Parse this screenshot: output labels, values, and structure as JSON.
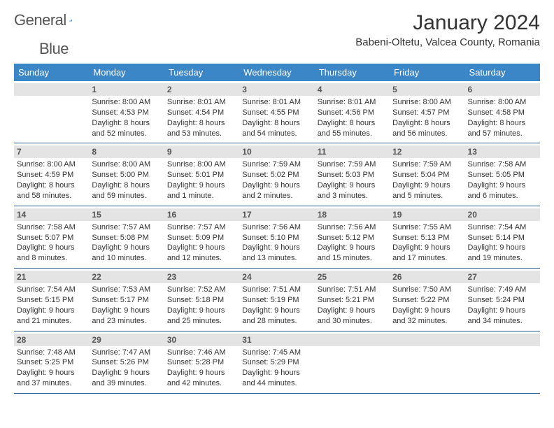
{
  "brand": {
    "word1": "General",
    "word2": "Blue"
  },
  "title": "January 2024",
  "location": "Babeni-Oltetu, Valcea County, Romania",
  "weekdays": [
    "Sunday",
    "Monday",
    "Tuesday",
    "Wednesday",
    "Thursday",
    "Friday",
    "Saturday"
  ],
  "colors": {
    "header_bg": "#3b86c6",
    "header_text": "#ffffff",
    "row_border": "#2a5d8a",
    "dayband_bg": "#e4e4e4",
    "dayband_text": "#555555",
    "body_text": "#333333",
    "logo_text": "#555555",
    "logo_tri1": "#2a5d8a",
    "logo_tri2": "#5ea2dd"
  },
  "calendar_fontsize": 11,
  "weeks": [
    [
      {
        "num": "",
        "sunrise": "",
        "sunset": "",
        "daylight": ""
      },
      {
        "num": "1",
        "sunrise": "Sunrise: 8:00 AM",
        "sunset": "Sunset: 4:53 PM",
        "daylight": "Daylight: 8 hours and 52 minutes."
      },
      {
        "num": "2",
        "sunrise": "Sunrise: 8:01 AM",
        "sunset": "Sunset: 4:54 PM",
        "daylight": "Daylight: 8 hours and 53 minutes."
      },
      {
        "num": "3",
        "sunrise": "Sunrise: 8:01 AM",
        "sunset": "Sunset: 4:55 PM",
        "daylight": "Daylight: 8 hours and 54 minutes."
      },
      {
        "num": "4",
        "sunrise": "Sunrise: 8:01 AM",
        "sunset": "Sunset: 4:56 PM",
        "daylight": "Daylight: 8 hours and 55 minutes."
      },
      {
        "num": "5",
        "sunrise": "Sunrise: 8:00 AM",
        "sunset": "Sunset: 4:57 PM",
        "daylight": "Daylight: 8 hours and 56 minutes."
      },
      {
        "num": "6",
        "sunrise": "Sunrise: 8:00 AM",
        "sunset": "Sunset: 4:58 PM",
        "daylight": "Daylight: 8 hours and 57 minutes."
      }
    ],
    [
      {
        "num": "7",
        "sunrise": "Sunrise: 8:00 AM",
        "sunset": "Sunset: 4:59 PM",
        "daylight": "Daylight: 8 hours and 58 minutes."
      },
      {
        "num": "8",
        "sunrise": "Sunrise: 8:00 AM",
        "sunset": "Sunset: 5:00 PM",
        "daylight": "Daylight: 8 hours and 59 minutes."
      },
      {
        "num": "9",
        "sunrise": "Sunrise: 8:00 AM",
        "sunset": "Sunset: 5:01 PM",
        "daylight": "Daylight: 9 hours and 1 minute."
      },
      {
        "num": "10",
        "sunrise": "Sunrise: 7:59 AM",
        "sunset": "Sunset: 5:02 PM",
        "daylight": "Daylight: 9 hours and 2 minutes."
      },
      {
        "num": "11",
        "sunrise": "Sunrise: 7:59 AM",
        "sunset": "Sunset: 5:03 PM",
        "daylight": "Daylight: 9 hours and 3 minutes."
      },
      {
        "num": "12",
        "sunrise": "Sunrise: 7:59 AM",
        "sunset": "Sunset: 5:04 PM",
        "daylight": "Daylight: 9 hours and 5 minutes."
      },
      {
        "num": "13",
        "sunrise": "Sunrise: 7:58 AM",
        "sunset": "Sunset: 5:05 PM",
        "daylight": "Daylight: 9 hours and 6 minutes."
      }
    ],
    [
      {
        "num": "14",
        "sunrise": "Sunrise: 7:58 AM",
        "sunset": "Sunset: 5:07 PM",
        "daylight": "Daylight: 9 hours and 8 minutes."
      },
      {
        "num": "15",
        "sunrise": "Sunrise: 7:57 AM",
        "sunset": "Sunset: 5:08 PM",
        "daylight": "Daylight: 9 hours and 10 minutes."
      },
      {
        "num": "16",
        "sunrise": "Sunrise: 7:57 AM",
        "sunset": "Sunset: 5:09 PM",
        "daylight": "Daylight: 9 hours and 12 minutes."
      },
      {
        "num": "17",
        "sunrise": "Sunrise: 7:56 AM",
        "sunset": "Sunset: 5:10 PM",
        "daylight": "Daylight: 9 hours and 13 minutes."
      },
      {
        "num": "18",
        "sunrise": "Sunrise: 7:56 AM",
        "sunset": "Sunset: 5:12 PM",
        "daylight": "Daylight: 9 hours and 15 minutes."
      },
      {
        "num": "19",
        "sunrise": "Sunrise: 7:55 AM",
        "sunset": "Sunset: 5:13 PM",
        "daylight": "Daylight: 9 hours and 17 minutes."
      },
      {
        "num": "20",
        "sunrise": "Sunrise: 7:54 AM",
        "sunset": "Sunset: 5:14 PM",
        "daylight": "Daylight: 9 hours and 19 minutes."
      }
    ],
    [
      {
        "num": "21",
        "sunrise": "Sunrise: 7:54 AM",
        "sunset": "Sunset: 5:15 PM",
        "daylight": "Daylight: 9 hours and 21 minutes."
      },
      {
        "num": "22",
        "sunrise": "Sunrise: 7:53 AM",
        "sunset": "Sunset: 5:17 PM",
        "daylight": "Daylight: 9 hours and 23 minutes."
      },
      {
        "num": "23",
        "sunrise": "Sunrise: 7:52 AM",
        "sunset": "Sunset: 5:18 PM",
        "daylight": "Daylight: 9 hours and 25 minutes."
      },
      {
        "num": "24",
        "sunrise": "Sunrise: 7:51 AM",
        "sunset": "Sunset: 5:19 PM",
        "daylight": "Daylight: 9 hours and 28 minutes."
      },
      {
        "num": "25",
        "sunrise": "Sunrise: 7:51 AM",
        "sunset": "Sunset: 5:21 PM",
        "daylight": "Daylight: 9 hours and 30 minutes."
      },
      {
        "num": "26",
        "sunrise": "Sunrise: 7:50 AM",
        "sunset": "Sunset: 5:22 PM",
        "daylight": "Daylight: 9 hours and 32 minutes."
      },
      {
        "num": "27",
        "sunrise": "Sunrise: 7:49 AM",
        "sunset": "Sunset: 5:24 PM",
        "daylight": "Daylight: 9 hours and 34 minutes."
      }
    ],
    [
      {
        "num": "28",
        "sunrise": "Sunrise: 7:48 AM",
        "sunset": "Sunset: 5:25 PM",
        "daylight": "Daylight: 9 hours and 37 minutes."
      },
      {
        "num": "29",
        "sunrise": "Sunrise: 7:47 AM",
        "sunset": "Sunset: 5:26 PM",
        "daylight": "Daylight: 9 hours and 39 minutes."
      },
      {
        "num": "30",
        "sunrise": "Sunrise: 7:46 AM",
        "sunset": "Sunset: 5:28 PM",
        "daylight": "Daylight: 9 hours and 42 minutes."
      },
      {
        "num": "31",
        "sunrise": "Sunrise: 7:45 AM",
        "sunset": "Sunset: 5:29 PM",
        "daylight": "Daylight: 9 hours and 44 minutes."
      },
      {
        "num": "",
        "sunrise": "",
        "sunset": "",
        "daylight": ""
      },
      {
        "num": "",
        "sunrise": "",
        "sunset": "",
        "daylight": ""
      },
      {
        "num": "",
        "sunrise": "",
        "sunset": "",
        "daylight": ""
      }
    ]
  ]
}
